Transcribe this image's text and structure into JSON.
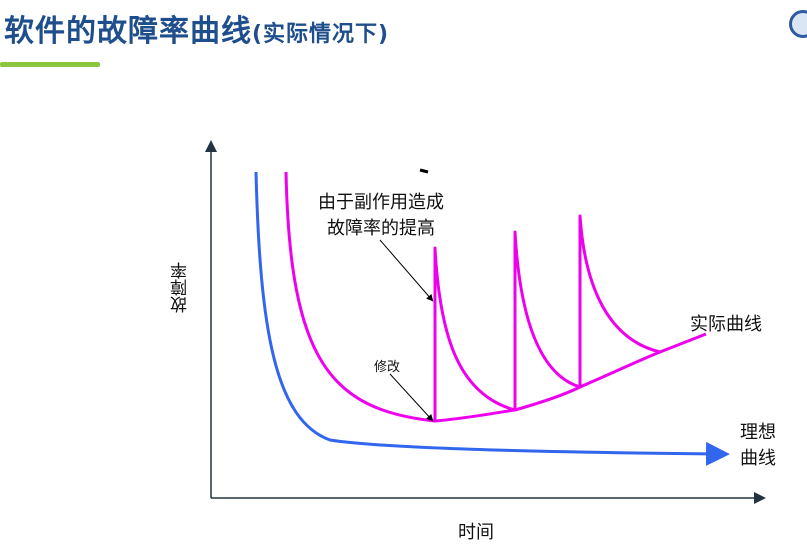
{
  "title": {
    "main": "软件的故障率曲线",
    "sub": "(实际情况下)"
  },
  "diagram": {
    "y_axis_label": "故障率",
    "x_axis_label": "时间",
    "annotation_line1": "由于副作用造成",
    "annotation_line2": "故障率的提高",
    "fix_label": "修改",
    "actual_curve_label": "实际曲线",
    "ideal_curve_label_line1": "理想",
    "ideal_curve_label_line2": "曲线",
    "colors": {
      "actual": "#ee00ee",
      "ideal": "#3366ee",
      "axis": "#223344"
    }
  }
}
